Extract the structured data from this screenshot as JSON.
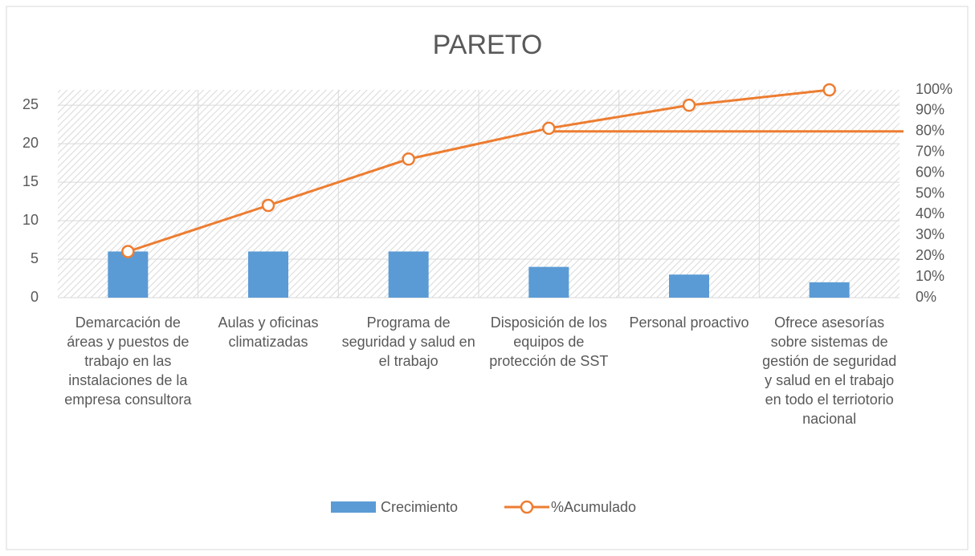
{
  "chart_data": {
    "type": "pareto",
    "title": "PARETO",
    "categories": [
      "Demarcación de áreas y puestos de trabajo en las instalaciones de la empresa consultora",
      "Aulas y oficinas climatizadas",
      "Programa de seguridad y salud en el trabajo",
      "Disposición de los equipos de protección de SST",
      "Personal proactivo",
      "Ofrece asesorías sobre sistemas de gestión de seguridad y salud en el trabajo en todo el terriotorio nacional"
    ],
    "series": [
      {
        "name": "Crecimiento",
        "color": "#5b9bd5",
        "values": [
          6,
          6,
          6,
          4,
          3,
          2
        ]
      },
      {
        "name": "%Acumulado",
        "color": "#ed7d31",
        "axis": "y2",
        "values": [
          22.2,
          44.4,
          66.7,
          81.5,
          92.6,
          100
        ]
      }
    ],
    "threshold": 80,
    "ylim": [
      0,
      27
    ],
    "yticks": [
      0,
      5,
      10,
      15,
      20,
      25
    ],
    "y2lim": [
      0,
      100
    ],
    "y2ticks": [
      {
        "value": 0,
        "label": "0%"
      },
      {
        "value": 10,
        "label": "10%"
      },
      {
        "value": 20,
        "label": "20%"
      },
      {
        "value": 30,
        "label": "30%"
      },
      {
        "value": 40,
        "label": "40%"
      },
      {
        "value": 50,
        "label": "50%"
      },
      {
        "value": 60,
        "label": "60%"
      },
      {
        "value": 70,
        "label": "70%"
      },
      {
        "value": 80,
        "label": "80%"
      },
      {
        "value": 90,
        "label": "90%"
      },
      {
        "value": 100,
        "label": "100%"
      }
    ],
    "grid": true,
    "legend": "bottom"
  }
}
